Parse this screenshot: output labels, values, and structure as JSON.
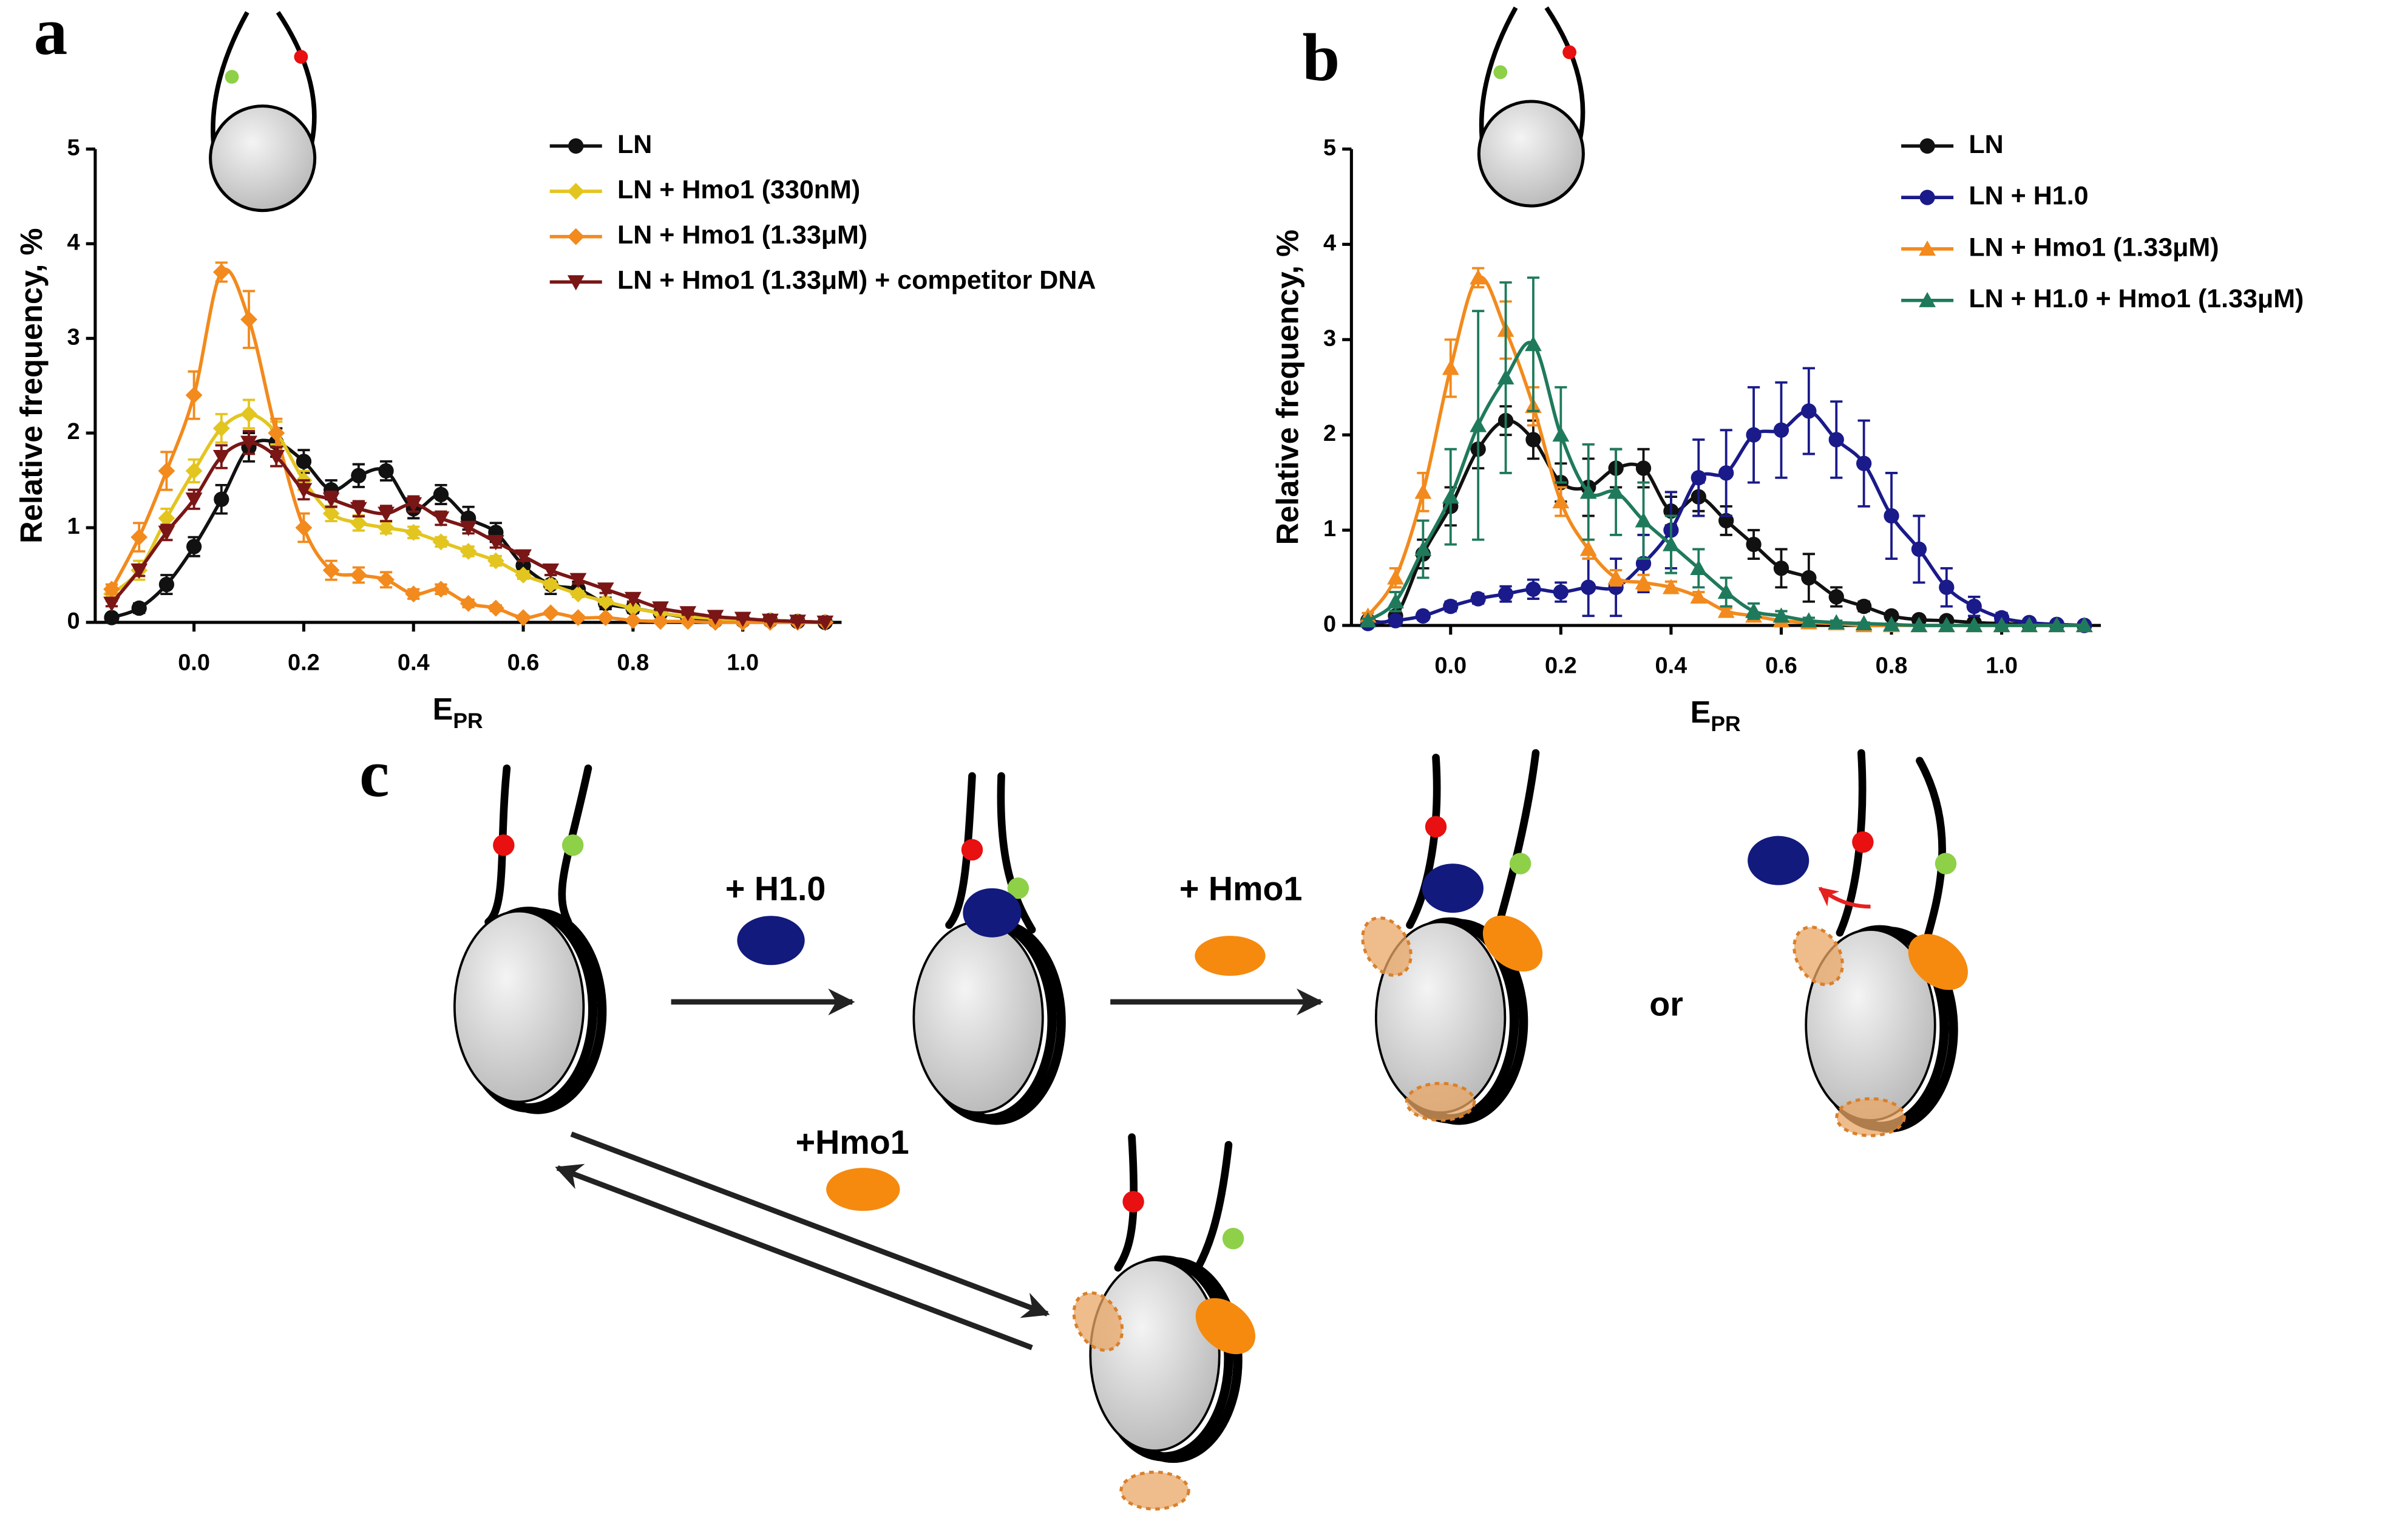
{
  "chart_data": [
    {
      "type": "line",
      "panel_label": "a",
      "y_label": "Relative frequency, %",
      "x_label": "E",
      "x_label_subscript": "PR",
      "xlim": [
        -0.18,
        1.18
      ],
      "ylim": [
        0,
        5
      ],
      "xticks": [
        {
          "value": 0,
          "label": "0.0"
        },
        0.2,
        0.4,
        0.6,
        0.8,
        {
          "value": 1,
          "label": "1.0"
        }
      ],
      "yticks": [
        0,
        1,
        2,
        3,
        4,
        5
      ],
      "x": [
        -0.15,
        -0.1,
        -0.05,
        0,
        0.05,
        0.1,
        0.15,
        0.2,
        0.25,
        0.3,
        0.35,
        0.4,
        0.45,
        0.5,
        0.55,
        0.6,
        0.65,
        0.7,
        0.75,
        0.8,
        0.85,
        0.9,
        0.95,
        1,
        1.05,
        1.1,
        1.15
      ],
      "series": [
        {
          "name": "LN",
          "color": "#111111",
          "marker": "circle",
          "values": [
            0.05,
            0.15,
            0.4,
            0.8,
            1.3,
            1.85,
            1.9,
            1.7,
            1.4,
            1.55,
            1.6,
            1.2,
            1.35,
            1.1,
            0.95,
            0.6,
            0.4,
            0.35,
            0.2,
            0.15,
            0.1,
            0.05,
            0.02,
            0.02,
            0.02,
            0.01,
            0
          ],
          "errors": [
            0.02,
            0.05,
            0.1,
            0.1,
            0.15,
            0.15,
            0.15,
            0.12,
            0.1,
            0.12,
            0.1,
            0.1,
            0.1,
            0.12,
            0.1,
            0.12,
            0.1,
            0.08,
            0.06,
            0.05,
            0.04,
            0.03,
            0.02,
            0.02,
            0.02,
            0.01,
            0
          ]
        },
        {
          "name": "LN + Hmo1 (330nM)",
          "color": "#e3c520",
          "marker": "diamond",
          "values": [
            0.3,
            0.55,
            1.1,
            1.6,
            2.05,
            2.2,
            2.0,
            1.5,
            1.15,
            1.05,
            1.0,
            0.95,
            0.85,
            0.75,
            0.65,
            0.5,
            0.4,
            0.3,
            0.22,
            0.15,
            0.1,
            0.06,
            0.04,
            0.02,
            0.02,
            0.01,
            0
          ],
          "errors": [
            0.05,
            0.1,
            0.1,
            0.12,
            0.15,
            0.15,
            0.12,
            0.1,
            0.08,
            0.08,
            0.06,
            0.06,
            0.05,
            0.05,
            0.05,
            0.04,
            0.04,
            0.03,
            0.03,
            0.02,
            0.02,
            0.02,
            0.01,
            0.01,
            0.01,
            0.01,
            0
          ]
        },
        {
          "name": "LN + Hmo1 (1.33μM)",
          "color": "#f28a1d",
          "marker": "diamond",
          "values": [
            0.35,
            0.9,
            1.6,
            2.4,
            3.7,
            3.2,
            2.0,
            1.0,
            0.55,
            0.5,
            0.45,
            0.3,
            0.35,
            0.2,
            0.15,
            0.05,
            0.1,
            0.05,
            0.05,
            0.02,
            0.01,
            0.01,
            0,
            0,
            0,
            0,
            0
          ],
          "errors": [
            0.05,
            0.15,
            0.2,
            0.25,
            0.1,
            0.3,
            0.15,
            0.15,
            0.1,
            0.08,
            0.08,
            0.05,
            0.05,
            0.04,
            0.03,
            0.02,
            0.02,
            0.02,
            0.01,
            0.01,
            0.01,
            0,
            0,
            0,
            0,
            0,
            0
          ]
        },
        {
          "name": "LN + Hmo1 (1.33μM) + competitor DNA",
          "color": "#7a1616",
          "marker": "triangle-down",
          "values": [
            0.2,
            0.55,
            0.95,
            1.3,
            1.75,
            1.9,
            1.75,
            1.4,
            1.3,
            1.2,
            1.15,
            1.25,
            1.1,
            1.0,
            0.85,
            0.7,
            0.55,
            0.45,
            0.35,
            0.25,
            0.15,
            0.1,
            0.06,
            0.04,
            0.02,
            0.01,
            0
          ],
          "errors": [
            0.03,
            0.06,
            0.08,
            0.1,
            0.12,
            0.12,
            0.1,
            0.1,
            0.08,
            0.08,
            0.08,
            0.08,
            0.07,
            0.06,
            0.06,
            0.05,
            0.05,
            0.04,
            0.04,
            0.03,
            0.02,
            0.02,
            0.01,
            0.01,
            0.01,
            0.01,
            0
          ]
        }
      ],
      "legend": "upper right"
    },
    {
      "type": "line",
      "panel_label": "b",
      "y_label": "Relative frequency, %",
      "x_label": "E",
      "x_label_subscript": "PR",
      "xlim": [
        -0.18,
        1.18
      ],
      "ylim": [
        0,
        5
      ],
      "xticks": [
        {
          "value": 0,
          "label": "0.0"
        },
        0.2,
        0.4,
        0.6,
        0.8,
        {
          "value": 1,
          "label": "1.0"
        }
      ],
      "yticks": [
        0,
        1,
        2,
        3,
        4,
        5
      ],
      "x": [
        -0.15,
        -0.1,
        -0.05,
        0,
        0.05,
        0.1,
        0.15,
        0.2,
        0.25,
        0.3,
        0.35,
        0.4,
        0.45,
        0.5,
        0.55,
        0.6,
        0.65,
        0.7,
        0.75,
        0.8,
        0.85,
        0.9,
        0.95,
        1,
        1.05,
        1.1,
        1.15
      ],
      "series": [
        {
          "name": "LN",
          "color": "#111111",
          "marker": "circle",
          "values": [
            0.05,
            0.1,
            0.75,
            1.25,
            1.85,
            2.15,
            1.95,
            1.5,
            1.45,
            1.65,
            1.65,
            1.2,
            1.35,
            1.1,
            0.85,
            0.6,
            0.5,
            0.3,
            0.2,
            0.1,
            0.06,
            0.05,
            0.03,
            0.02,
            0.01,
            0.01,
            0
          ],
          "errors": [
            0.02,
            0.05,
            0.15,
            0.2,
            0.2,
            0.15,
            0.2,
            0.2,
            0.3,
            0.2,
            0.2,
            0.15,
            0.15,
            0.15,
            0.15,
            0.2,
            0.25,
            0.1,
            0.05,
            0.04,
            0.03,
            0.02,
            0.02,
            0.01,
            0.01,
            0.01,
            0
          ]
        },
        {
          "name": "LN + H1.0",
          "color": "#1a1a8a",
          "marker": "circle",
          "values": [
            0.02,
            0.05,
            0.1,
            0.2,
            0.28,
            0.33,
            0.38,
            0.35,
            0.4,
            0.4,
            0.65,
            1.0,
            1.55,
            1.6,
            2.0,
            2.05,
            2.25,
            1.95,
            1.7,
            1.15,
            0.8,
            0.4,
            0.2,
            0.08,
            0.03,
            0.01,
            0
          ],
          "errors": [
            0.01,
            0.02,
            0.03,
            0.05,
            0.05,
            0.08,
            0.1,
            0.1,
            0.3,
            0.3,
            0.3,
            0.4,
            0.4,
            0.45,
            0.5,
            0.5,
            0.45,
            0.4,
            0.45,
            0.45,
            0.35,
            0.2,
            0.1,
            0.05,
            0.02,
            0.01,
            0
          ]
        },
        {
          "name": "LN + Hmo1 (1.33μM)",
          "color": "#f28a1d",
          "marker": "triangle-up",
          "values": [
            0.1,
            0.5,
            1.4,
            2.7,
            3.65,
            3.1,
            2.3,
            1.3,
            0.8,
            0.5,
            0.45,
            0.4,
            0.3,
            0.15,
            0.1,
            0.05,
            0.03,
            0.02,
            0,
            0,
            0,
            0,
            0,
            0,
            0,
            0,
            0
          ],
          "errors": [
            0.03,
            0.1,
            0.2,
            0.3,
            0.1,
            0.3,
            0.2,
            0.15,
            0.1,
            0.08,
            0.08,
            0.06,
            0.05,
            0.03,
            0.02,
            0.02,
            0.01,
            0.01,
            0,
            0,
            0,
            0,
            0,
            0,
            0,
            0,
            0
          ]
        },
        {
          "name": "LN + H1.0 + Hmo1 (1.33μM)",
          "color": "#1f7a5c",
          "marker": "triangle-up",
          "values": [
            0.05,
            0.25,
            0.8,
            1.35,
            2.1,
            2.6,
            2.95,
            2.0,
            1.4,
            1.4,
            1.1,
            0.85,
            0.6,
            0.35,
            0.15,
            0.1,
            0.05,
            0.03,
            0.02,
            0.01,
            0,
            0,
            0,
            0,
            0,
            0,
            0
          ],
          "errors": [
            0.02,
            0.1,
            0.3,
            0.5,
            1.2,
            1.0,
            0.7,
            0.5,
            0.5,
            0.45,
            0.4,
            0.3,
            0.2,
            0.15,
            0.08,
            0.05,
            0.03,
            0.02,
            0.01,
            0.01,
            0,
            0,
            0,
            0,
            0,
            0,
            0
          ]
        }
      ],
      "legend": "upper right"
    }
  ],
  "diagram": {
    "panel_label": "c",
    "step1": "+ H1.0",
    "step2": "+ Hmo1",
    "or": "or",
    "step3": "+Hmo1"
  }
}
